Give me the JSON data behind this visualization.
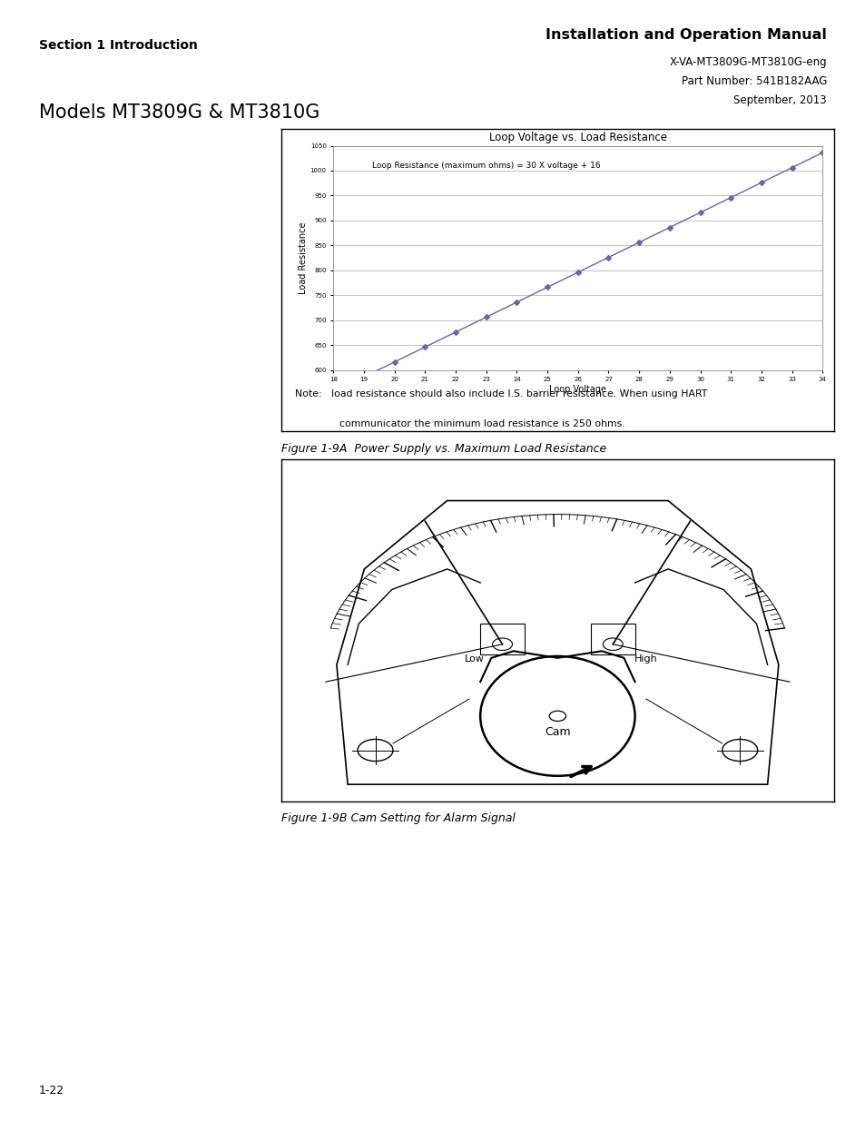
{
  "page_title_left": "Section 1 Introduction",
  "page_title_right": "Installation and Operation Manual",
  "page_subtitle_right1": "X-VA-MT3809G-MT3810G-eng",
  "page_subtitle_right2": "Part Number: 541B182AAG",
  "page_subtitle_right3": "September, 2013",
  "model_line": "Models MT3809G & MT3810G",
  "page_number": "1-22",
  "chart_title": "Loop Voltage vs. Load Resistance",
  "chart_annotation": "Loop Resistance (maximum ohms) = 30 X voltage + 16",
  "chart_xlabel": "Loop Voltage",
  "chart_ylabel": "Load Resistance",
  "chart_xlim": [
    18,
    34
  ],
  "chart_ylim": [
    600,
    1050
  ],
  "chart_xticks": [
    18,
    19,
    20,
    21,
    22,
    23,
    24,
    25,
    26,
    27,
    28,
    29,
    30,
    31,
    32,
    33,
    34
  ],
  "chart_yticks": [
    600,
    650,
    700,
    750,
    800,
    850,
    900,
    950,
    1000,
    1050
  ],
  "chart_line_color": "#6666aa",
  "chart_marker": "D",
  "chart_marker_size": 3,
  "note_line1": "Note:   load resistance should also include I.S. barrier resistance. When using HART",
  "note_line2": "              communicator the minimum load resistance is 250 ohms.",
  "fig1_caption": "Figure 1-9A  Power Supply vs. Maximum Load Resistance",
  "fig2_caption": "Figure 1-9B Cam Setting for Alarm Signal",
  "bg_color": "#ffffff"
}
